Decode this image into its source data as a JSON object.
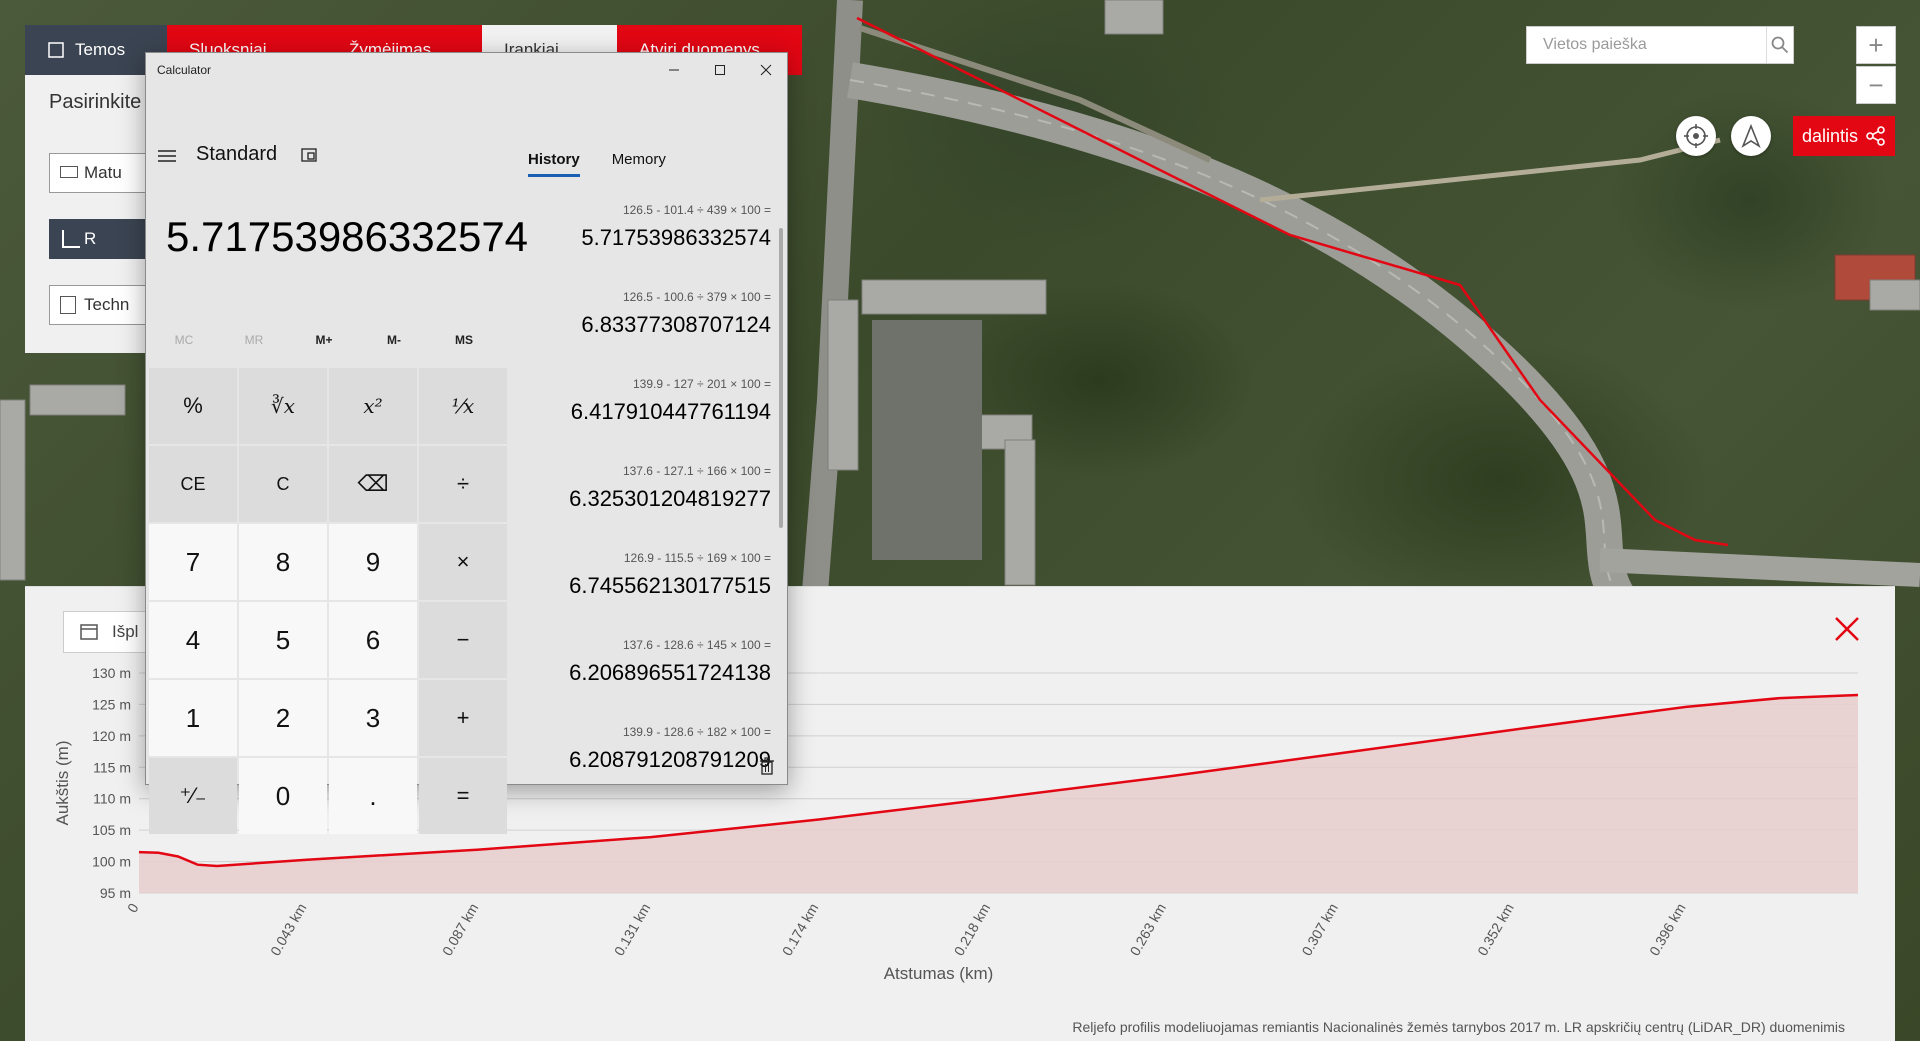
{
  "map": {
    "search_placeholder": "Vietos paieška",
    "zoom_in": "+",
    "zoom_out": "−",
    "share_label": "dalintis"
  },
  "topbar": {
    "tabs": [
      {
        "label": "Temos"
      },
      {
        "label": "Sluoksniai"
      },
      {
        "label": "Žymėjimas"
      },
      {
        "label": "Įrankiai"
      },
      {
        "label": "Atviri duomenys"
      }
    ]
  },
  "left_panel": {
    "title": "Pasirinkite",
    "buttons": [
      "Matu",
      "R",
      "Techn"
    ]
  },
  "profile": {
    "selector_label": "Išpl",
    "footnote": "Reljefo profilis modeliuojamas remiantis Nacionalinės žemės tarnybos 2017 m. LR apskričių centrų (LiDAR_DR) duomenimis"
  },
  "chart_data": {
    "type": "area",
    "title": "",
    "xlabel": "Atstumas (km)",
    "ylabel": "Aukštis (m)",
    "xlim": [
      0,
      0.44
    ],
    "ylim": [
      95,
      130
    ],
    "x_ticks": [
      "0",
      "0.043 km",
      "0.087 km",
      "0.131 km",
      "0.174 km",
      "0.218 km",
      "0.263 km",
      "0.307 km",
      "0.352 km",
      "0.396 km"
    ],
    "y_ticks": [
      "130 m",
      "125 m",
      "120 m",
      "115 m",
      "110 m",
      "105 m",
      "100 m",
      "95 m"
    ],
    "x": [
      0,
      0.005,
      0.01,
      0.015,
      0.02,
      0.043,
      0.087,
      0.131,
      0.174,
      0.218,
      0.263,
      0.307,
      0.352,
      0.396,
      0.42,
      0.44
    ],
    "series": [
      {
        "values": [
          101.5,
          101.4,
          100.8,
          99.5,
          99.3,
          100.3,
          101.9,
          103.9,
          106.7,
          110.0,
          113.5,
          117.2,
          121.0,
          124.6,
          126.0,
          126.5
        ]
      }
    ],
    "colors": {
      "line": "#e30613",
      "fill": "#e8cccc"
    },
    "grid": true
  },
  "calculator": {
    "window_title": "Calculator",
    "mode": "Standard",
    "display": "5.71753986332574",
    "memory_buttons": [
      "MC",
      "MR",
      "M+",
      "M-",
      "MS"
    ],
    "keys": [
      "%",
      "∛x",
      "x²",
      "¹⁄x",
      "CE",
      "C",
      "⌫",
      "÷",
      "7",
      "8",
      "9",
      "×",
      "4",
      "5",
      "6",
      "−",
      "1",
      "2",
      "3",
      "+",
      "⁺⁄₋",
      "0",
      ".",
      "="
    ],
    "tabs": [
      "History",
      "Memory"
    ],
    "history": [
      {
        "expr": "126.5   -   101.4   ÷   439   ×   100 =",
        "result": "5.71753986332574"
      },
      {
        "expr": "126.5   -   100.6   ÷   379   ×   100 =",
        "result": "6.83377308707124"
      },
      {
        "expr": "139.9   -   127   ÷   201   ×   100 =",
        "result": "6.417910447761194"
      },
      {
        "expr": "137.6   -   127.1   ÷   166   ×   100 =",
        "result": "6.325301204819277"
      },
      {
        "expr": "126.9   -   115.5   ÷   169   ×   100 =",
        "result": "6.745562130177515"
      },
      {
        "expr": "137.6   -   128.6   ÷   145   ×   100 =",
        "result": "6.206896551724138"
      },
      {
        "expr": "139.9   -   128.6   ÷   182   ×   100 =",
        "result": "6.208791208791209"
      }
    ]
  }
}
